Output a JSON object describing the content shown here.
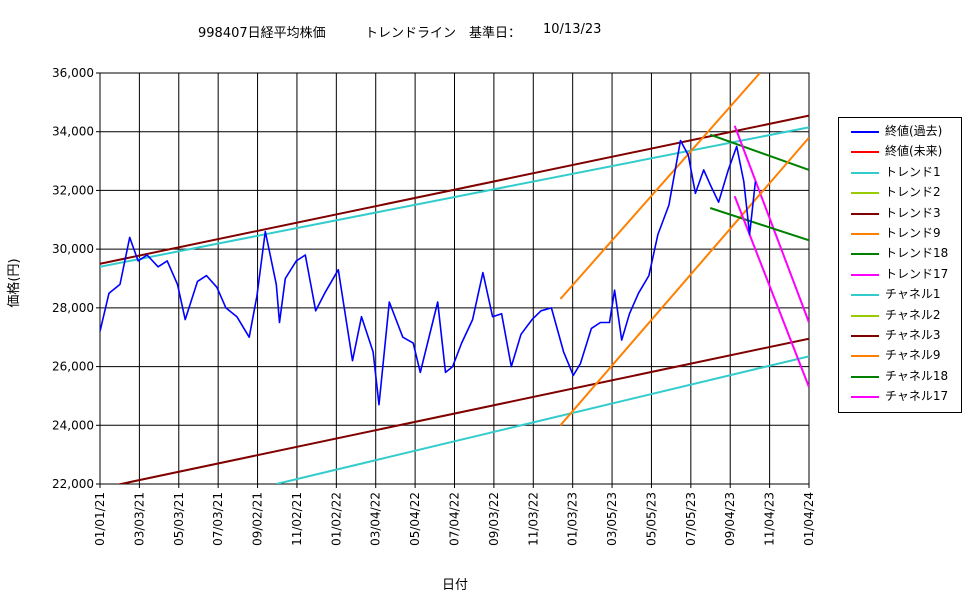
{
  "header": {
    "title": "998407日経平均株価",
    "subtitle": "トレンドライン　基準日：",
    "date": "10/13/23"
  },
  "chart_data": {
    "type": "line",
    "ylabel": "価格(円)",
    "xlabel": "日付",
    "ylim": [
      22000,
      36000
    ],
    "xlim": [
      "2021-01-01",
      "2024-01-04"
    ],
    "y_ticks": [
      "22,000",
      "24,000",
      "26,000",
      "28,000",
      "30,000",
      "32,000",
      "34,000",
      "36,000"
    ],
    "x_ticks": [
      "01/01/21",
      "03/03/21",
      "05/03/21",
      "07/03/21",
      "09/02/21",
      "11/02/21",
      "01/02/22",
      "03/04/22",
      "05/04/22",
      "07/04/22",
      "09/03/22",
      "11/03/22",
      "01/03/23",
      "03/05/23",
      "05/05/23",
      "07/05/23",
      "09/04/23",
      "11/04/23",
      "01/04/24"
    ],
    "grid": true,
    "legend_position": "right",
    "price_series": {
      "name": "終値(過去)",
      "color": "#0000ff",
      "points": [
        [
          "2021-01-01",
          27200
        ],
        [
          "2021-01-15",
          28500
        ],
        [
          "2021-02-01",
          28800
        ],
        [
          "2021-02-16",
          30400
        ],
        [
          "2021-03-01",
          29600
        ],
        [
          "2021-03-15",
          29800
        ],
        [
          "2021-04-01",
          29400
        ],
        [
          "2021-04-15",
          29600
        ],
        [
          "2021-05-01",
          28800
        ],
        [
          "2021-05-13",
          27600
        ],
        [
          "2021-06-01",
          28900
        ],
        [
          "2021-06-15",
          29100
        ],
        [
          "2021-07-01",
          28700
        ],
        [
          "2021-07-15",
          28000
        ],
        [
          "2021-08-01",
          27700
        ],
        [
          "2021-08-20",
          27000
        ],
        [
          "2021-09-01",
          28400
        ],
        [
          "2021-09-14",
          30600
        ],
        [
          "2021-10-01",
          28800
        ],
        [
          "2021-10-06",
          27500
        ],
        [
          "2021-10-15",
          29000
        ],
        [
          "2021-11-01",
          29600
        ],
        [
          "2021-11-15",
          29800
        ],
        [
          "2021-12-01",
          27900
        ],
        [
          "2021-12-15",
          28500
        ],
        [
          "2022-01-05",
          29300
        ],
        [
          "2022-01-27",
          26200
        ],
        [
          "2022-02-10",
          27700
        ],
        [
          "2022-02-28",
          26500
        ],
        [
          "2022-03-09",
          24700
        ],
        [
          "2022-03-25",
          28200
        ],
        [
          "2022-04-15",
          27000
        ],
        [
          "2022-05-01",
          26800
        ],
        [
          "2022-05-12",
          25800
        ],
        [
          "2022-06-08",
          28200
        ],
        [
          "2022-06-20",
          25800
        ],
        [
          "2022-07-01",
          26000
        ],
        [
          "2022-07-15",
          26800
        ],
        [
          "2022-08-01",
          27600
        ],
        [
          "2022-08-17",
          29200
        ],
        [
          "2022-09-01",
          27700
        ],
        [
          "2022-09-15",
          27800
        ],
        [
          "2022-09-30",
          26000
        ],
        [
          "2022-10-15",
          27100
        ],
        [
          "2022-11-01",
          27600
        ],
        [
          "2022-11-15",
          27900
        ],
        [
          "2022-12-01",
          28000
        ],
        [
          "2022-12-20",
          26500
        ],
        [
          "2023-01-04",
          25700
        ],
        [
          "2023-01-15",
          26100
        ],
        [
          "2023-02-01",
          27300
        ],
        [
          "2023-02-15",
          27500
        ],
        [
          "2023-03-01",
          27500
        ],
        [
          "2023-03-09",
          28600
        ],
        [
          "2023-03-20",
          26900
        ],
        [
          "2023-04-01",
          27800
        ],
        [
          "2023-04-15",
          28500
        ],
        [
          "2023-05-01",
          29100
        ],
        [
          "2023-05-15",
          30500
        ],
        [
          "2023-06-01",
          31500
        ],
        [
          "2023-06-19",
          33700
        ],
        [
          "2023-07-01",
          33200
        ],
        [
          "2023-07-12",
          31900
        ],
        [
          "2023-07-25",
          32700
        ],
        [
          "2023-08-04",
          32200
        ],
        [
          "2023-08-17",
          31600
        ],
        [
          "2023-09-01",
          32700
        ],
        [
          "2023-09-14",
          33500
        ],
        [
          "2023-09-25",
          32300
        ],
        [
          "2023-10-04",
          30500
        ],
        [
          "2023-10-13",
          32300
        ]
      ]
    },
    "lines": [
      {
        "name": "終値(未来)",
        "color": "#ff0000",
        "points": []
      },
      {
        "name": "トレンド1",
        "color": "#33cccc",
        "points": [
          [
            "2021-01-01",
            29400
          ],
          [
            "2024-01-04",
            34150
          ]
        ]
      },
      {
        "name": "トレンド2",
        "color": "#99cc00",
        "points": []
      },
      {
        "name": "トレンド3",
        "color": "#800000",
        "points": [
          [
            "2021-01-01",
            29500
          ],
          [
            "2024-01-04",
            34550
          ]
        ]
      },
      {
        "name": "トレンド9",
        "color": "#ff8000",
        "points": [
          [
            "2022-12-15",
            28300
          ],
          [
            "2023-10-20",
            36000
          ]
        ]
      },
      {
        "name": "トレンド18",
        "color": "#008000",
        "points": [
          [
            "2023-08-04",
            33900
          ],
          [
            "2024-01-04",
            32700
          ]
        ]
      },
      {
        "name": "トレンド17",
        "color": "#ff00ff",
        "points": [
          [
            "2023-09-11",
            34200
          ],
          [
            "2024-01-04",
            27500
          ]
        ]
      },
      {
        "name": "チャネル1",
        "color": "#33cccc",
        "points": [
          [
            "2021-10-01",
            22000
          ],
          [
            "2024-01-04",
            26350
          ]
        ]
      },
      {
        "name": "チャネル2",
        "color": "#99cc00",
        "points": []
      },
      {
        "name": "チャネル3",
        "color": "#800000",
        "points": [
          [
            "2021-01-01",
            21850
          ],
          [
            "2024-01-04",
            26950
          ]
        ]
      },
      {
        "name": "チャネル9",
        "color": "#ff8000",
        "points": [
          [
            "2022-12-15",
            24000
          ],
          [
            "2024-01-04",
            33800
          ]
        ]
      },
      {
        "name": "チャネル18",
        "color": "#008000",
        "points": [
          [
            "2023-08-04",
            31400
          ],
          [
            "2024-01-04",
            30300
          ]
        ]
      },
      {
        "name": "チャネル17",
        "color": "#ff00ff",
        "points": [
          [
            "2023-09-11",
            31800
          ],
          [
            "2024-01-04",
            25300
          ]
        ]
      }
    ]
  }
}
